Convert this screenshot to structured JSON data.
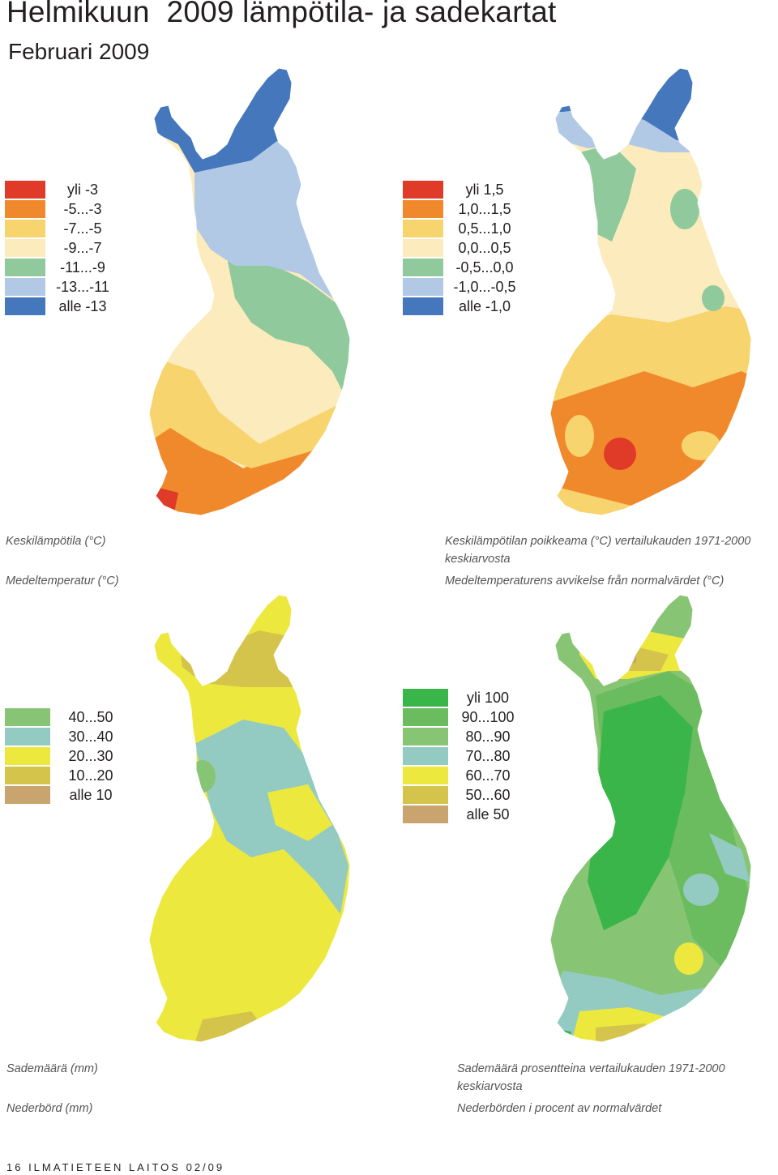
{
  "header": {
    "title": "Helmikuun  2009 lämpötila- ja sadekartat",
    "subtitle": "Februari 2009"
  },
  "panels": [
    {
      "legend": [
        {
          "label": "yli -3",
          "color": "#e03a28"
        },
        {
          "label": "-5...-3",
          "color": "#f0892c"
        },
        {
          "label": "-7...-5",
          "color": "#f7d46e"
        },
        {
          "label": "-9...-7",
          "color": "#fcebbd"
        },
        {
          "label": "-11...-9",
          "color": "#8fc99c"
        },
        {
          "label": "-13...-11",
          "color": "#b1c9e4"
        },
        {
          "label": "alle -13",
          "color": "#4577bd"
        }
      ],
      "caption_fi": "Keskilämpötila (°C)",
      "caption_sv": "Medeltemperatur (°C)"
    },
    {
      "legend": [
        {
          "label": "yli 1,5",
          "color": "#e03a28"
        },
        {
          "label": "1,0...1,5",
          "color": "#f0892c"
        },
        {
          "label": "0,5...1,0",
          "color": "#f7d46e"
        },
        {
          "label": "0,0...0,5",
          "color": "#fcebbd"
        },
        {
          "label": "-0,5...0,0",
          "color": "#8fc99c"
        },
        {
          "label": "-1,0...-0,5",
          "color": "#b1c9e4"
        },
        {
          "label": "alle -1,0",
          "color": "#4577bd"
        }
      ],
      "caption_fi": "Keskilämpötilan poikkeama (°C) vertailukauden 1971-2000",
      "caption_fi_2": "keskiarvosta",
      "caption_sv": "Medeltemperaturens avvikelse från normalvärdet (°C)"
    },
    {
      "legend": [
        {
          "label": "40...50",
          "color": "#87c574"
        },
        {
          "label": "30...40",
          "color": "#93cbc2"
        },
        {
          "label": "20...30",
          "color": "#ede83e"
        },
        {
          "label": "10...20",
          "color": "#d4c44b"
        },
        {
          "label": "alle 10",
          "color": "#c9a46e"
        }
      ],
      "caption_fi": "Sademäärä (mm)",
      "caption_sv": "Nederbörd (mm)"
    },
    {
      "legend": [
        {
          "label": "yli 100",
          "color": "#3ab54a"
        },
        {
          "label": "90...100",
          "color": "#6abc5e"
        },
        {
          "label": "80...90",
          "color": "#87c574"
        },
        {
          "label": "70...80",
          "color": "#93cbc2"
        },
        {
          "label": "60...70",
          "color": "#ede83e"
        },
        {
          "label": "50...60",
          "color": "#d4c44b"
        },
        {
          "label": "alle 50",
          "color": "#c9a46e"
        }
      ],
      "caption_fi": "Sademäärä prosentteina vertailukauden 1971-2000",
      "caption_fi_2": "keskiarvosta",
      "caption_sv": "Nederbörden i procent av normalvärdet"
    }
  ],
  "footer": {
    "text": "16  ILMATIETEEN LAITOS 02/09"
  }
}
